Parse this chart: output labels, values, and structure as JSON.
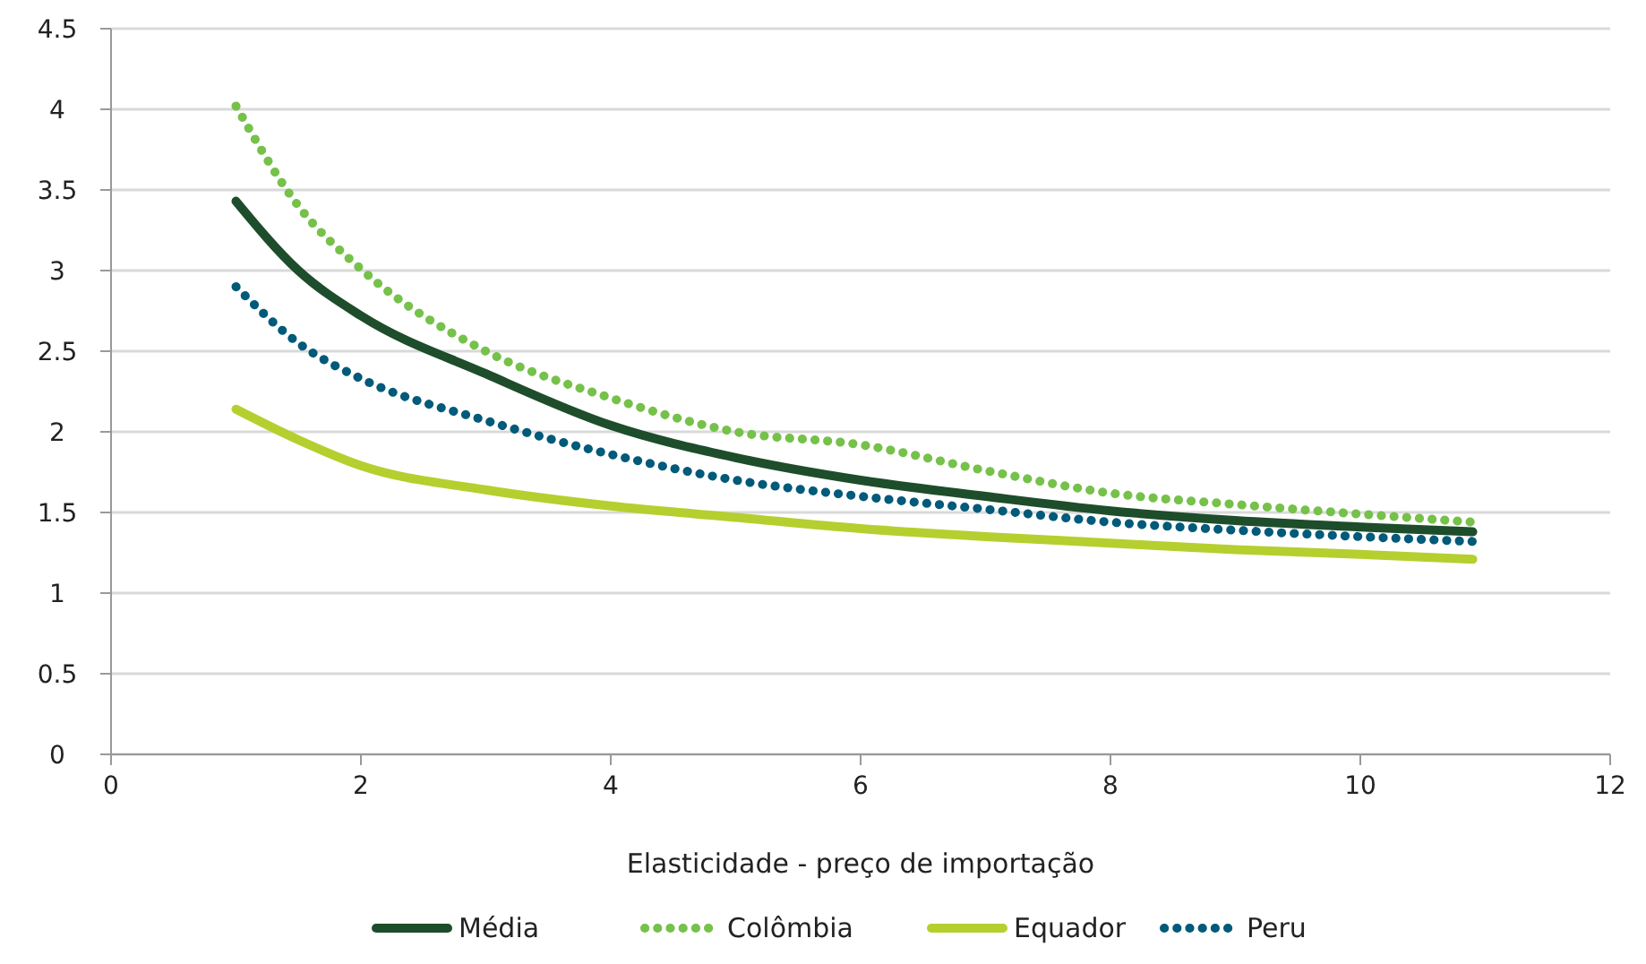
{
  "chart_data": {
    "type": "line",
    "xlabel": "Elasticidade - preço de importação",
    "xlim": [
      0,
      12
    ],
    "xticks": [
      0,
      2,
      4,
      6,
      8,
      10,
      12
    ],
    "ylim": [
      0,
      4.5
    ],
    "yticks": [
      0,
      0.5,
      1,
      1.5,
      2,
      2.5,
      3,
      3.5,
      4,
      4.5
    ],
    "grid": "y",
    "legend": "bottom",
    "marker": "none",
    "x": [
      1,
      1.5,
      2,
      3,
      4,
      5,
      6,
      7,
      8,
      9,
      10,
      10.9
    ],
    "series": [
      {
        "name": "Média",
        "color": "#1e4d2b",
        "line_style": "solid",
        "values": [
          3.43,
          3.0,
          2.72,
          2.36,
          2.04,
          1.84,
          1.7,
          1.6,
          1.51,
          1.45,
          1.41,
          1.38
        ]
      },
      {
        "name": "Colômbia",
        "color": "#76c14a",
        "line_style": "dotted",
        "values": [
          4.02,
          3.4,
          3.01,
          2.5,
          2.21,
          2.0,
          1.92,
          1.76,
          1.62,
          1.55,
          1.49,
          1.44
        ]
      },
      {
        "name": "Equador",
        "color": "#b5cf2f",
        "line_style": "solid",
        "values": [
          2.14,
          1.95,
          1.79,
          1.64,
          1.54,
          1.47,
          1.4,
          1.35,
          1.31,
          1.27,
          1.24,
          1.21
        ]
      },
      {
        "name": "Peru",
        "color": "#005a7a",
        "line_style": "dotted",
        "values": [
          2.9,
          2.55,
          2.33,
          2.07,
          1.86,
          1.7,
          1.6,
          1.52,
          1.44,
          1.39,
          1.35,
          1.32
        ]
      }
    ]
  }
}
